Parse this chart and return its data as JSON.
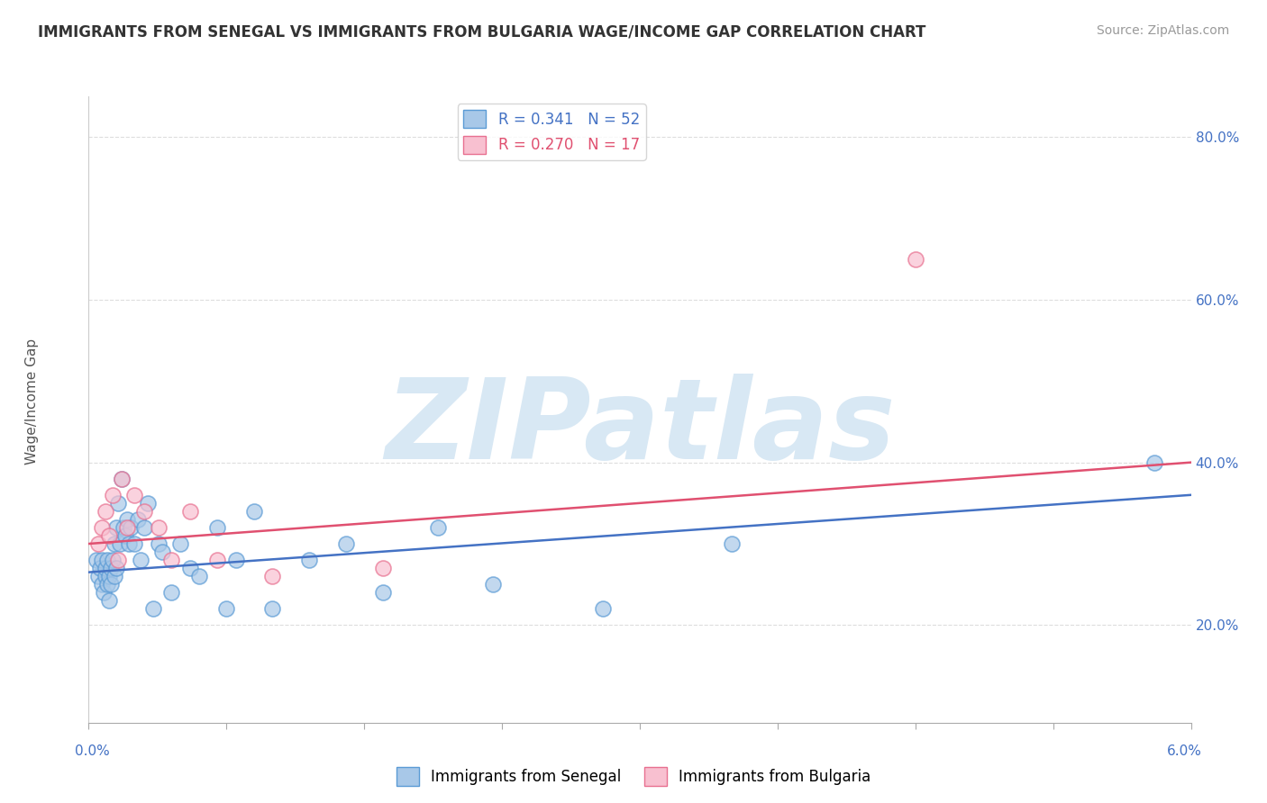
{
  "title": "IMMIGRANTS FROM SENEGAL VS IMMIGRANTS FROM BULGARIA WAGE/INCOME GAP CORRELATION CHART",
  "source": "Source: ZipAtlas.com",
  "ylabel": "Wage/Income Gap",
  "xlim": [
    0.0,
    6.0
  ],
  "ylim": [
    8.0,
    85.0
  ],
  "ytick_values": [
    20.0,
    40.0,
    60.0,
    80.0
  ],
  "senegal_color_fill": "#A8C8E8",
  "senegal_color_edge": "#5B9BD5",
  "senegal_color_line": "#4472C4",
  "bulgaria_color_fill": "#F8C0D0",
  "bulgaria_color_edge": "#E87090",
  "bulgaria_color_line": "#E05070",
  "senegal_label": "Immigrants from Senegal",
  "bulgaria_label": "Immigrants from Bulgaria",
  "R_senegal": 0.341,
  "N_senegal": 52,
  "R_bulgaria": 0.27,
  "N_bulgaria": 17,
  "senegal_x": [
    0.04,
    0.05,
    0.06,
    0.07,
    0.07,
    0.08,
    0.09,
    0.09,
    0.1,
    0.1,
    0.11,
    0.11,
    0.12,
    0.12,
    0.13,
    0.14,
    0.14,
    0.15,
    0.15,
    0.16,
    0.17,
    0.18,
    0.19,
    0.2,
    0.21,
    0.22,
    0.23,
    0.25,
    0.27,
    0.28,
    0.3,
    0.32,
    0.35,
    0.38,
    0.4,
    0.45,
    0.5,
    0.55,
    0.6,
    0.7,
    0.75,
    0.8,
    0.9,
    1.0,
    1.2,
    1.4,
    1.6,
    1.9,
    2.2,
    2.8,
    3.5,
    5.8
  ],
  "senegal_y": [
    28.0,
    26.0,
    27.0,
    25.0,
    28.0,
    24.0,
    26.0,
    27.0,
    25.0,
    28.0,
    23.0,
    26.0,
    27.0,
    25.0,
    28.0,
    30.0,
    26.0,
    32.0,
    27.0,
    35.0,
    30.0,
    38.0,
    32.0,
    31.0,
    33.0,
    30.0,
    32.0,
    30.0,
    33.0,
    28.0,
    32.0,
    35.0,
    22.0,
    30.0,
    29.0,
    24.0,
    30.0,
    27.0,
    26.0,
    32.0,
    22.0,
    28.0,
    34.0,
    22.0,
    28.0,
    30.0,
    24.0,
    32.0,
    25.0,
    22.0,
    30.0,
    40.0
  ],
  "bulgaria_x": [
    0.05,
    0.07,
    0.09,
    0.11,
    0.13,
    0.16,
    0.18,
    0.21,
    0.25,
    0.3,
    0.38,
    0.45,
    0.55,
    0.7,
    1.0,
    1.6,
    4.5
  ],
  "bulgaria_y": [
    30.0,
    32.0,
    34.0,
    31.0,
    36.0,
    28.0,
    38.0,
    32.0,
    36.0,
    34.0,
    32.0,
    28.0,
    34.0,
    28.0,
    26.0,
    27.0,
    65.0
  ],
  "senegal_trend_x0": 0.0,
  "senegal_trend_y0": 26.5,
  "senegal_trend_x1": 6.0,
  "senegal_trend_y1": 36.0,
  "bulgaria_trend_x0": 0.0,
  "bulgaria_trend_y0": 30.0,
  "bulgaria_trend_x1": 6.0,
  "bulgaria_trend_y1": 40.0,
  "background_color": "#FFFFFF",
  "watermark_text": "ZIPatlas",
  "watermark_color": "#D8E8F4",
  "grid_color": "#DDDDDD",
  "title_fontsize": 12,
  "source_fontsize": 10,
  "tick_fontsize": 11,
  "legend_fontsize": 12
}
